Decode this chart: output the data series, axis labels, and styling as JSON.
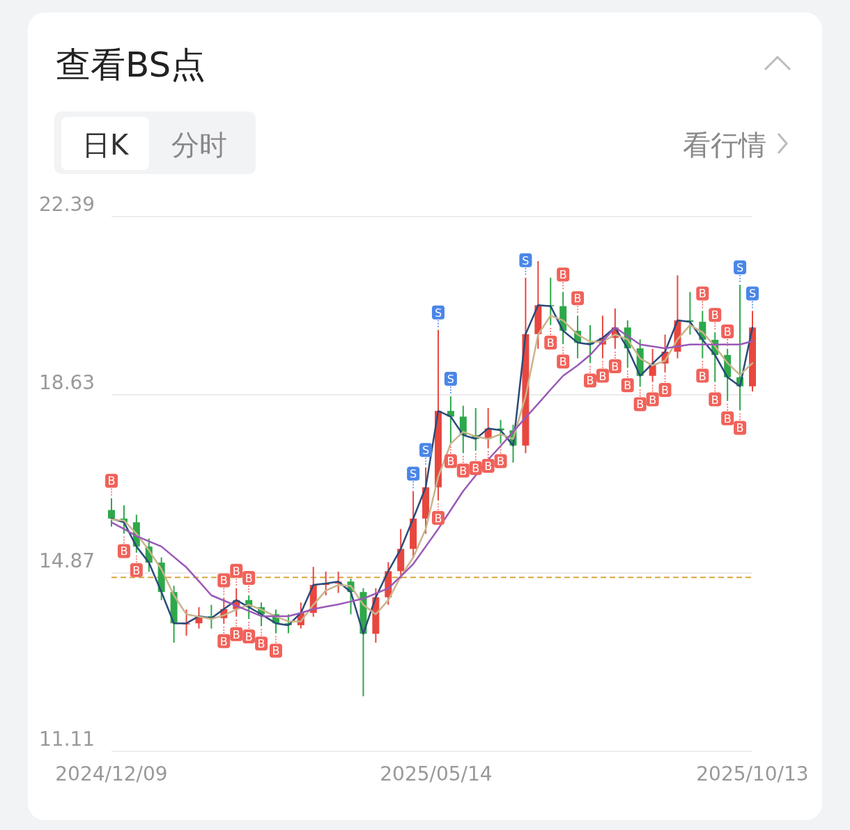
{
  "chart_data": {
    "type": "candlestick",
    "title": "查看BS点",
    "x": [
      "2024-12-09",
      "2024-12-15",
      "2024-12-21",
      "2024-12-27",
      "2025-01-02",
      "2025-01-08",
      "2025-01-14",
      "2025-01-20",
      "2025-01-26",
      "2025-02-01",
      "2025-02-07",
      "2025-02-13",
      "2025-02-19",
      "2025-02-26",
      "2025-03-04",
      "2025-03-10",
      "2025-03-16",
      "2025-03-22",
      "2025-03-28",
      "2025-04-03",
      "2025-04-09",
      "2025-04-15",
      "2025-04-21",
      "2025-04-27",
      "2025-05-03",
      "2025-05-09",
      "2025-05-15",
      "2025-05-21",
      "2025-05-27",
      "2025-06-02",
      "2025-06-08",
      "2025-06-14",
      "2025-06-20",
      "2025-06-26",
      "2025-07-02",
      "2025-07-08",
      "2025-07-14",
      "2025-07-21",
      "2025-07-27",
      "2025-08-02",
      "2025-08-08",
      "2025-08-14",
      "2025-08-20",
      "2025-08-26",
      "2025-09-01",
      "2025-09-07",
      "2025-09-13",
      "2025-09-19",
      "2025-09-25",
      "2025-10-01",
      "2025-10-07",
      "2025-10-13"
    ],
    "ohlc": [
      [
        16.2,
        16.45,
        15.85,
        16.02
      ],
      [
        16.02,
        16.3,
        15.7,
        15.94
      ],
      [
        15.94,
        16.1,
        15.3,
        15.43
      ],
      [
        15.43,
        15.6,
        14.9,
        15.09
      ],
      [
        15.09,
        15.2,
        14.3,
        14.47
      ],
      [
        14.47,
        14.6,
        13.4,
        13.81
      ],
      [
        13.81,
        14.1,
        13.55,
        13.81
      ],
      [
        13.81,
        14.15,
        13.7,
        13.96
      ],
      [
        13.96,
        14.2,
        13.7,
        13.92
      ],
      [
        13.92,
        14.35,
        13.8,
        14.11
      ],
      [
        14.11,
        14.55,
        13.95,
        14.3
      ],
      [
        14.3,
        14.4,
        13.9,
        14.15
      ],
      [
        14.15,
        14.25,
        13.75,
        14.0
      ],
      [
        14.0,
        14.1,
        13.6,
        13.81
      ],
      [
        13.81,
        14.0,
        13.6,
        13.77
      ],
      [
        13.77,
        14.25,
        13.7,
        14.03
      ],
      [
        14.03,
        15.0,
        13.95,
        14.62
      ],
      [
        14.62,
        14.9,
        14.4,
        14.65
      ],
      [
        14.65,
        14.9,
        14.45,
        14.69
      ],
      [
        14.69,
        14.75,
        14.0,
        14.47
      ],
      [
        14.47,
        14.55,
        12.27,
        13.59
      ],
      [
        13.59,
        14.55,
        13.4,
        14.36
      ],
      [
        14.36,
        15.1,
        14.2,
        14.91
      ],
      [
        14.91,
        15.8,
        14.75,
        15.38
      ],
      [
        15.38,
        16.6,
        15.2,
        16.02
      ],
      [
        16.02,
        17.1,
        15.7,
        16.68
      ],
      [
        16.68,
        20.0,
        16.4,
        18.29
      ],
      [
        18.29,
        18.6,
        17.6,
        18.17
      ],
      [
        18.17,
        18.4,
        17.4,
        17.78
      ],
      [
        17.78,
        18.35,
        17.45,
        17.7
      ],
      [
        17.7,
        18.35,
        17.5,
        17.92
      ],
      [
        17.92,
        18.1,
        17.6,
        17.88
      ],
      [
        17.88,
        18.0,
        17.2,
        17.56
      ],
      [
        17.56,
        21.1,
        17.4,
        19.91
      ],
      [
        19.91,
        21.45,
        19.6,
        20.52
      ],
      [
        20.52,
        21.1,
        20.1,
        20.5
      ],
      [
        20.5,
        20.8,
        19.7,
        19.98
      ],
      [
        19.98,
        20.3,
        19.4,
        19.73
      ],
      [
        19.73,
        20.1,
        19.3,
        19.69
      ],
      [
        19.69,
        20.3,
        19.4,
        19.83
      ],
      [
        19.83,
        20.45,
        19.6,
        20.05
      ],
      [
        20.05,
        20.2,
        19.2,
        19.61
      ],
      [
        19.61,
        19.8,
        18.8,
        19.03
      ],
      [
        19.03,
        19.6,
        18.9,
        19.29
      ],
      [
        19.29,
        19.9,
        19.1,
        19.54
      ],
      [
        19.54,
        21.15,
        19.4,
        20.2
      ],
      [
        20.2,
        20.8,
        19.9,
        20.17
      ],
      [
        20.17,
        20.4,
        19.4,
        19.79
      ],
      [
        19.79,
        19.95,
        18.9,
        19.47
      ],
      [
        19.47,
        19.6,
        18.5,
        19.0
      ],
      [
        19.0,
        20.95,
        18.3,
        18.81
      ],
      [
        18.81,
        20.4,
        18.7,
        20.05
      ]
    ],
    "series": [
      {
        "type": "line",
        "color": "#2b4a7a",
        "values": [
          16.02,
          15.94,
          15.43,
          15.09,
          14.47,
          13.81,
          13.81,
          13.96,
          13.92,
          14.11,
          14.3,
          14.15,
          14.0,
          13.81,
          13.77,
          14.03,
          14.62,
          14.65,
          14.69,
          14.47,
          13.59,
          14.36,
          14.91,
          15.38,
          16.02,
          16.68,
          18.29,
          18.17,
          17.78,
          17.7,
          17.92,
          17.88,
          17.56,
          19.91,
          20.52,
          20.5,
          19.98,
          19.73,
          19.69,
          19.83,
          20.05,
          19.61,
          19.03,
          19.29,
          19.54,
          20.2,
          20.17,
          19.79,
          19.47,
          19.0,
          18.81,
          20.05
        ]
      },
      {
        "type": "line",
        "color": "#c8b48c",
        "values": [
          16.0,
          15.98,
          15.7,
          15.35,
          14.95,
          14.4,
          14.0,
          13.95,
          13.9,
          13.98,
          14.1,
          14.2,
          14.1,
          13.95,
          13.85,
          13.85,
          14.2,
          14.5,
          14.62,
          14.6,
          14.2,
          14.0,
          14.3,
          14.8,
          15.2,
          15.8,
          16.9,
          17.6,
          17.85,
          17.75,
          17.7,
          17.8,
          17.7,
          18.6,
          19.9,
          20.3,
          20.2,
          19.9,
          19.75,
          19.75,
          19.9,
          19.8,
          19.4,
          19.25,
          19.35,
          19.8,
          20.1,
          19.95,
          19.65,
          19.3,
          19.05,
          19.3
        ]
      },
      {
        "type": "line",
        "color": "#9b59b6",
        "values": [
          15.94,
          15.8,
          15.65,
          15.54,
          15.43,
          15.21,
          14.99,
          14.7,
          14.4,
          14.29,
          14.18,
          14.07,
          13.96,
          13.96,
          13.96,
          14.03,
          14.11,
          14.16,
          14.21,
          14.27,
          14.33,
          14.44,
          14.55,
          14.8,
          15.06,
          15.43,
          15.8,
          16.2,
          16.6,
          16.93,
          17.26,
          17.55,
          17.85,
          18.15,
          18.44,
          18.74,
          19.03,
          19.25,
          19.47,
          19.76,
          20.05,
          19.87,
          19.69,
          19.65,
          19.61,
          19.65,
          19.69,
          19.69,
          19.69,
          19.69,
          19.69,
          19.76
        ]
      }
    ],
    "ylim": [
      11.11,
      22.39
    ],
    "yticks": [
      11.11,
      14.87,
      18.63,
      22.39
    ],
    "xlim": [
      "2024-12-09",
      "2025-10-13"
    ],
    "xticks": [
      {
        "value": "2024-12-09",
        "label": "2024/12/09"
      },
      {
        "value": "2025-05-14",
        "label": "2025/05/14"
      },
      {
        "value": "2025-10-13",
        "label": "2025/10/13"
      }
    ],
    "grid": "y",
    "ref_lines": [
      {
        "axis": "y",
        "value": 14.78,
        "color": "#d9a640",
        "line_style": "dashed"
      }
    ],
    "annotations": [
      "日K",
      "分时",
      "看行情",
      {
        "text": "S",
        "x": "2025-05-03",
        "y": 16.6
      },
      {
        "text": "S",
        "x": "2025-05-09",
        "y": 17.1
      },
      {
        "text": "S",
        "x": "2025-05-15",
        "y": 20.0
      },
      {
        "text": "S",
        "x": "2025-05-21",
        "y": 18.6
      },
      {
        "text": "S",
        "x": "2025-06-26",
        "y": 21.1
      },
      {
        "text": "S",
        "x": "2025-10-07",
        "y": 20.95
      },
      {
        "text": "S",
        "x": "2025-10-13",
        "y": 20.4
      },
      {
        "text": "B",
        "x": "2024-12-09",
        "y": 16.45
      },
      {
        "text": "B",
        "x": "2024-12-15",
        "y": 15.7
      },
      {
        "text": "B",
        "x": "2024-12-21",
        "y": 15.3
      },
      {
        "text": "B",
        "x": "2025-02-01",
        "y": 14.35
      },
      {
        "text": "B",
        "x": "2025-02-07",
        "y": 14.55
      },
      {
        "text": "B",
        "x": "2025-02-13",
        "y": 14.4
      },
      {
        "text": "B",
        "x": "2025-02-01",
        "y": 13.8
      },
      {
        "text": "B",
        "x": "2025-02-07",
        "y": 13.95
      },
      {
        "text": "B",
        "x": "2025-02-13",
        "y": 13.9
      },
      {
        "text": "B",
        "x": "2025-02-19",
        "y": 13.75
      },
      {
        "text": "B",
        "x": "2025-02-26",
        "y": 13.6
      },
      {
        "text": "B",
        "x": "2025-05-15",
        "y": 16.4
      },
      {
        "text": "B",
        "x": "2025-05-21",
        "y": 17.6
      },
      {
        "text": "B",
        "x": "2025-05-27",
        "y": 17.4
      },
      {
        "text": "B",
        "x": "2025-06-02",
        "y": 17.45
      },
      {
        "text": "B",
        "x": "2025-06-08",
        "y": 17.5
      },
      {
        "text": "B",
        "x": "2025-06-14",
        "y": 17.6
      },
      {
        "text": "B",
        "x": "2025-07-14",
        "y": 20.8
      },
      {
        "text": "B",
        "x": "2025-07-21",
        "y": 20.3
      },
      {
        "text": "B",
        "x": "2025-07-08",
        "y": 20.1
      },
      {
        "text": "B",
        "x": "2025-07-14",
        "y": 19.7
      },
      {
        "text": "B",
        "x": "2025-07-27",
        "y": 19.3
      },
      {
        "text": "B",
        "x": "2025-08-02",
        "y": 19.4
      },
      {
        "text": "B",
        "x": "2025-08-08",
        "y": 19.6
      },
      {
        "text": "B",
        "x": "2025-08-14",
        "y": 19.2
      },
      {
        "text": "B",
        "x": "2025-08-20",
        "y": 18.8
      },
      {
        "text": "B",
        "x": "2025-08-26",
        "y": 18.9
      },
      {
        "text": "B",
        "x": "2025-09-01",
        "y": 19.1
      },
      {
        "text": "B",
        "x": "2025-09-19",
        "y": 20.4
      },
      {
        "text": "B",
        "x": "2025-09-25",
        "y": 19.95
      },
      {
        "text": "B",
        "x": "2025-10-01",
        "y": 19.6
      },
      {
        "text": "B",
        "x": "2025-10-07",
        "y": 18.3
      },
      {
        "text": "B",
        "x": "2025-09-19",
        "y": 19.4
      },
      {
        "text": "B",
        "x": "2025-09-25",
        "y": 18.9
      },
      {
        "text": "B",
        "x": "2025-10-01",
        "y": 18.5
      }
    ]
  }
}
